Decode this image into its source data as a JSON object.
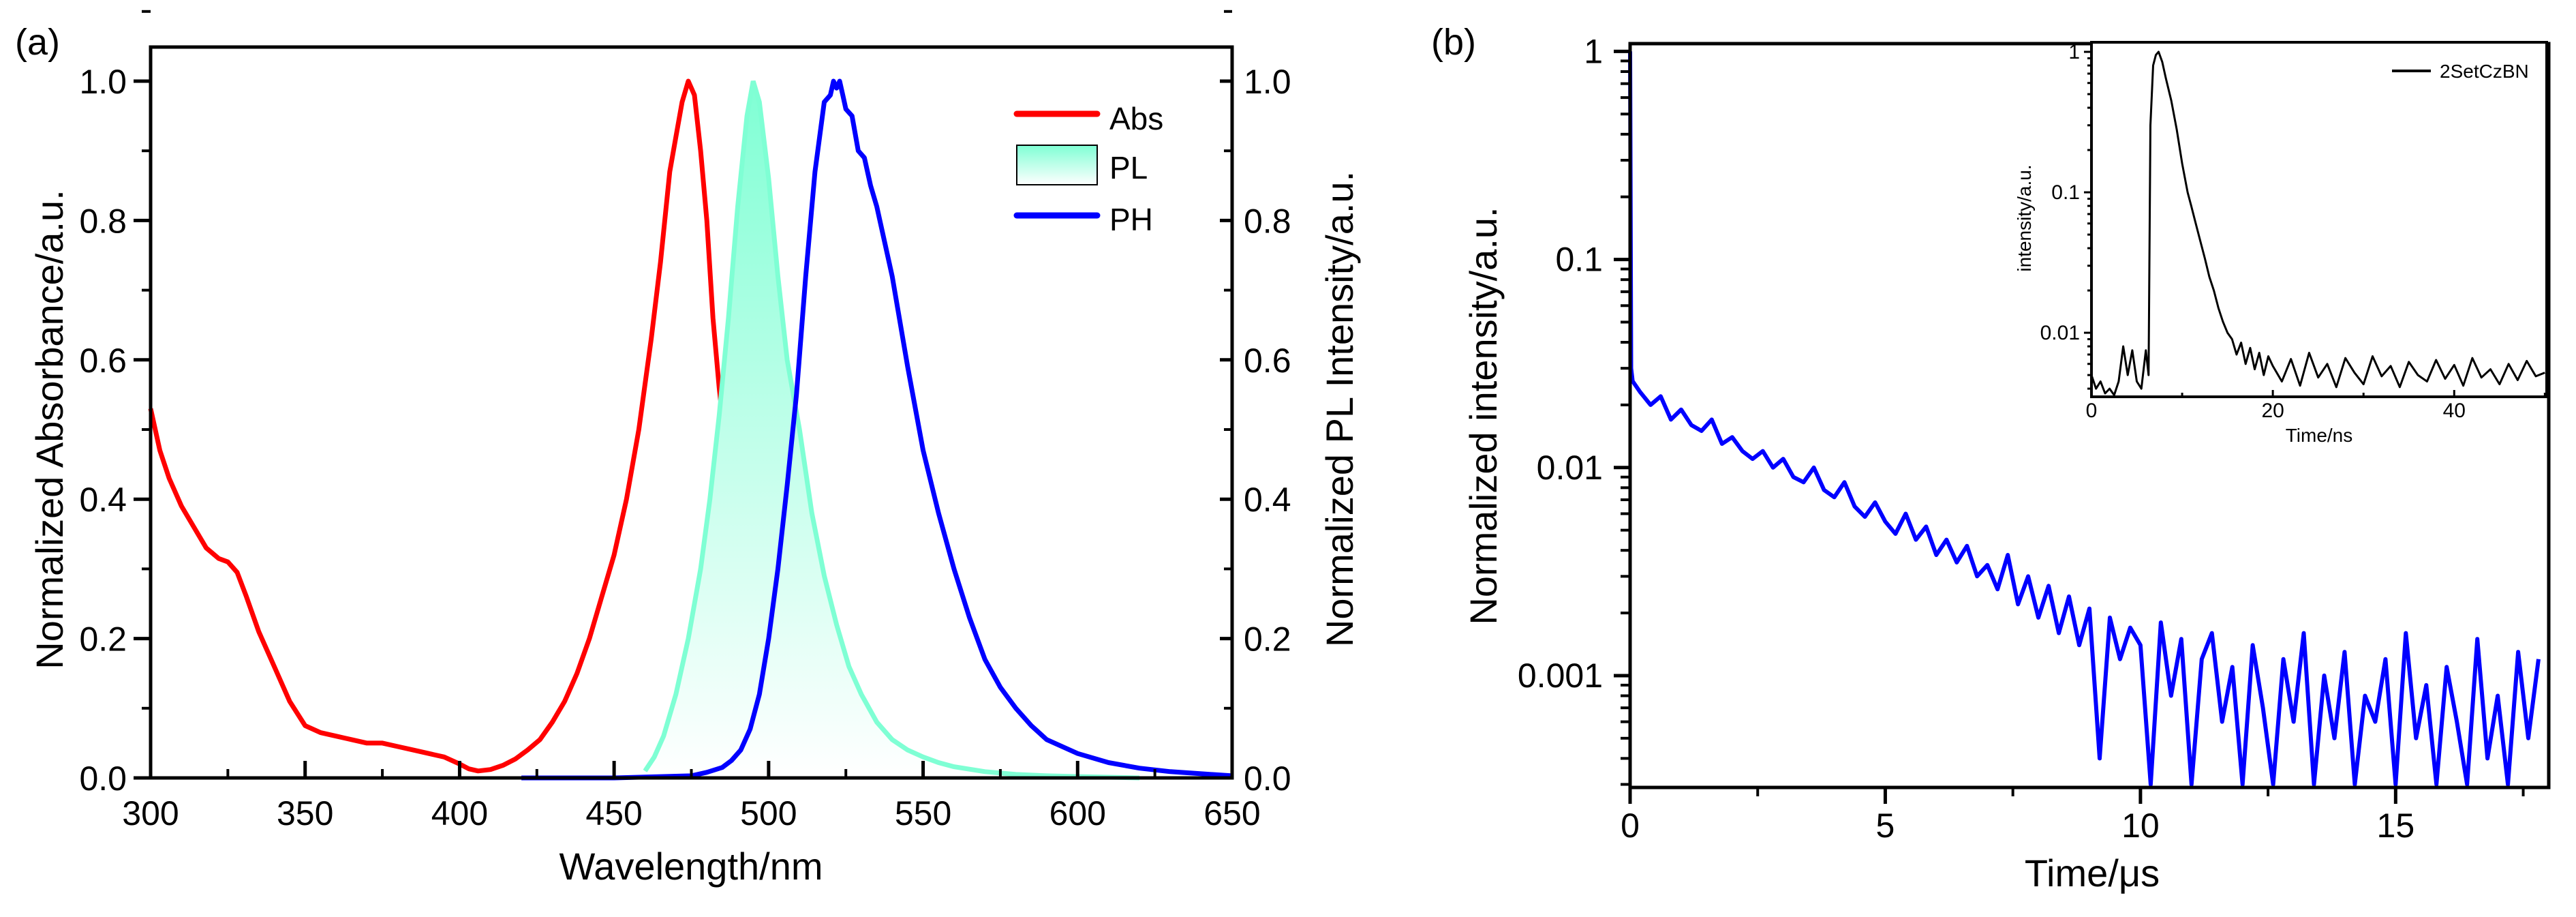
{
  "chart_data": [
    {
      "panel_label": "(a)",
      "type": "line",
      "xlabel": "Wavelength/nm",
      "ylabel": "Normalized Absorbance/a.u.",
      "ylabel_right": "Normalized PL Intensity/a.u.",
      "xlim": [
        300,
        650
      ],
      "ylim": [
        0,
        1.05
      ],
      "xticks": [
        300,
        350,
        400,
        450,
        500,
        550,
        600,
        650
      ],
      "yticks": [
        "0.0",
        "0.2",
        "0.4",
        "0.6",
        "0.8",
        "1.0"
      ],
      "grid": false,
      "legend_position": "top-right",
      "series": [
        {
          "name": "Abs",
          "style": "line",
          "color": "#ff0000",
          "x": [
            300,
            303,
            306,
            310,
            314,
            318,
            322,
            325,
            328,
            331,
            335,
            340,
            345,
            350,
            355,
            360,
            365,
            370,
            375,
            380,
            385,
            390,
            395,
            400,
            403,
            406,
            410,
            414,
            418,
            422,
            426,
            430,
            434,
            438,
            442,
            446,
            450,
            454,
            458,
            462,
            465,
            468,
            470,
            472,
            474,
            476,
            478,
            480,
            482,
            484,
            486,
            490,
            495,
            500,
            505,
            510
          ],
          "y": [
            0.53,
            0.47,
            0.43,
            0.39,
            0.36,
            0.33,
            0.315,
            0.31,
            0.295,
            0.26,
            0.21,
            0.16,
            0.11,
            0.075,
            0.065,
            0.06,
            0.055,
            0.05,
            0.05,
            0.045,
            0.04,
            0.035,
            0.03,
            0.02,
            0.013,
            0.01,
            0.012,
            0.018,
            0.027,
            0.04,
            0.055,
            0.08,
            0.11,
            0.15,
            0.2,
            0.26,
            0.32,
            0.4,
            0.5,
            0.63,
            0.74,
            0.87,
            0.92,
            0.97,
            1.0,
            0.98,
            0.9,
            0.8,
            0.66,
            0.56,
            0.48,
            0.32,
            0.17,
            0.08,
            0.03,
            0.01
          ]
        },
        {
          "name": "PL",
          "style": "filled",
          "color": "#7fffd4",
          "x": [
            460,
            463,
            466,
            470,
            474,
            478,
            481,
            484,
            487,
            490,
            493,
            495,
            497,
            500,
            503,
            506,
            510,
            514,
            518,
            522,
            526,
            530,
            535,
            540,
            545,
            550,
            555,
            560,
            570,
            580,
            590,
            600,
            620
          ],
          "y": [
            0.01,
            0.03,
            0.06,
            0.12,
            0.2,
            0.3,
            0.4,
            0.52,
            0.66,
            0.82,
            0.95,
            1.0,
            0.97,
            0.86,
            0.72,
            0.6,
            0.5,
            0.38,
            0.29,
            0.22,
            0.16,
            0.12,
            0.08,
            0.055,
            0.04,
            0.03,
            0.022,
            0.016,
            0.009,
            0.005,
            0.003,
            0.002,
            0.0
          ]
        },
        {
          "name": "PH",
          "style": "line",
          "color": "#0000ff",
          "x": [
            420,
            450,
            475,
            480,
            485,
            488,
            491,
            494,
            497,
            500,
            503,
            506,
            509,
            512,
            515,
            518,
            520,
            521,
            522,
            523,
            524,
            525,
            527,
            529,
            531,
            533,
            535,
            540,
            545,
            550,
            555,
            560,
            565,
            570,
            575,
            580,
            585,
            590,
            600,
            610,
            620,
            630,
            640,
            650
          ],
          "y": [
            0.0,
            0.0,
            0.003,
            0.008,
            0.015,
            0.025,
            0.04,
            0.07,
            0.12,
            0.2,
            0.3,
            0.42,
            0.55,
            0.72,
            0.87,
            0.97,
            0.98,
            1.0,
            0.99,
            1.0,
            0.98,
            0.96,
            0.95,
            0.9,
            0.89,
            0.85,
            0.82,
            0.72,
            0.59,
            0.47,
            0.38,
            0.3,
            0.23,
            0.17,
            0.13,
            0.1,
            0.075,
            0.055,
            0.035,
            0.022,
            0.014,
            0.009,
            0.006,
            0.003
          ]
        }
      ]
    },
    {
      "panel_label": "(b)",
      "type": "line",
      "xlabel": "Time/μs",
      "ylabel": "Normalized intensity/a.u.",
      "xlim": [
        0,
        18
      ],
      "ylim": [
        0.00029,
        1.09
      ],
      "yscale": "log",
      "xticks": [
        0,
        5,
        10,
        15
      ],
      "yticks": [
        "0.001",
        "0.01",
        "0.1",
        "1"
      ],
      "grid": false,
      "series": [
        {
          "color": "#0000ff",
          "x": [
            0,
            0.02,
            0.05,
            0.2,
            0.4,
            0.6,
            0.8,
            1.0,
            1.2,
            1.4,
            1.6,
            1.8,
            2.0,
            2.2,
            2.4,
            2.6,
            2.8,
            3.0,
            3.2,
            3.4,
            3.6,
            3.8,
            4.0,
            4.2,
            4.4,
            4.6,
            4.8,
            5.0,
            5.2,
            5.4,
            5.6,
            5.8,
            6.0,
            6.2,
            6.4,
            6.6,
            6.8,
            7.0,
            7.2,
            7.4,
            7.6,
            7.8,
            8.0,
            8.2,
            8.4,
            8.6,
            8.8,
            9.0,
            9.2,
            9.4,
            9.6,
            9.8,
            10.0,
            10.2,
            10.4,
            10.6,
            10.8,
            11.0,
            11.2,
            11.4,
            11.6,
            11.8,
            12.0,
            12.2,
            12.4,
            12.6,
            12.8,
            13.0,
            13.2,
            13.4,
            13.6,
            13.8,
            14.0,
            14.2,
            14.4,
            14.6,
            14.8,
            15.0,
            15.2,
            15.4,
            15.6,
            15.8,
            16.0,
            16.2,
            16.4,
            16.6,
            16.8,
            17.0,
            17.2,
            17.4,
            17.6,
            17.8
          ],
          "y": [
            1.0,
            0.03,
            0.026,
            0.023,
            0.02,
            0.022,
            0.017,
            0.019,
            0.016,
            0.015,
            0.017,
            0.013,
            0.014,
            0.012,
            0.011,
            0.012,
            0.01,
            0.011,
            0.009,
            0.0085,
            0.01,
            0.0078,
            0.0072,
            0.0085,
            0.0065,
            0.0058,
            0.0068,
            0.0055,
            0.0048,
            0.006,
            0.0045,
            0.0052,
            0.0038,
            0.0045,
            0.0035,
            0.0042,
            0.003,
            0.0034,
            0.0026,
            0.0038,
            0.0022,
            0.003,
            0.0019,
            0.0027,
            0.0016,
            0.0024,
            0.0014,
            0.0021,
            0.0004,
            0.0019,
            0.0012,
            0.0017,
            0.0014,
            0.0003,
            0.0018,
            0.0008,
            0.0015,
            0.0003,
            0.0012,
            0.0016,
            0.0006,
            0.0011,
            0.0003,
            0.0014,
            0.0007,
            0.0003,
            0.0012,
            0.0006,
            0.0016,
            0.0003,
            0.001,
            0.0005,
            0.0013,
            0.0003,
            0.0008,
            0.0006,
            0.0012,
            0.0003,
            0.0016,
            0.0005,
            0.0009,
            0.0003,
            0.0011,
            0.0006,
            0.0003,
            0.0015,
            0.0004,
            0.0008,
            0.0003,
            0.0013,
            0.0005,
            0.0012
          ]
        }
      ],
      "inset": {
        "xlabel": "Time/ns",
        "ylabel": "intensity/a.u.",
        "xlim": [
          0,
          50.2
        ],
        "ylim": [
          0.0035,
          1.17
        ],
        "yscale": "log",
        "xticks": [
          0,
          20,
          40
        ],
        "yticks": [
          "0.01",
          "0.1",
          "1"
        ],
        "legend_position": "top-right",
        "series": [
          {
            "name": "2SetCzBN",
            "color": "#000000",
            "x": [
              0,
              0.5,
              1,
              1.5,
              2,
              2.5,
              3,
              3.5,
              4,
              4.5,
              5,
              5.5,
              6,
              6.3,
              6.5,
              6.8,
              7.1,
              7.4,
              7.8,
              8.2,
              8.8,
              9.4,
              10,
              10.6,
              11,
              11.5,
              12,
              12.5,
              13,
              13.5,
              14,
              14.5,
              15,
              15.5,
              16,
              16.5,
              17,
              17.5,
              18,
              18.5,
              19,
              19.5,
              20,
              21,
              22,
              23,
              24,
              25,
              26,
              27,
              28,
              29,
              30,
              31,
              32,
              33,
              34,
              35,
              36,
              37,
              38,
              39,
              40,
              41,
              42,
              43,
              44,
              45,
              46,
              47,
              48,
              49,
              50
            ],
            "y": [
              0.005,
              0.004,
              0.0045,
              0.0037,
              0.004,
              0.0036,
              0.0045,
              0.008,
              0.005,
              0.0075,
              0.0045,
              0.004,
              0.0075,
              0.005,
              0.3,
              0.8,
              0.95,
              1.0,
              0.85,
              0.65,
              0.45,
              0.28,
              0.16,
              0.1,
              0.08,
              0.06,
              0.045,
              0.034,
              0.025,
              0.02,
              0.015,
              0.012,
              0.01,
              0.009,
              0.007,
              0.0085,
              0.006,
              0.0078,
              0.0055,
              0.0072,
              0.005,
              0.0068,
              0.0058,
              0.0045,
              0.0065,
              0.0042,
              0.0072,
              0.0048,
              0.006,
              0.0041,
              0.0066,
              0.0052,
              0.0043,
              0.0068,
              0.0049,
              0.0058,
              0.0041,
              0.0062,
              0.005,
              0.0045,
              0.0064,
              0.0047,
              0.0059,
              0.0042,
              0.0066,
              0.0048,
              0.0055,
              0.0043,
              0.006,
              0.0046,
              0.0063,
              0.0049,
              0.0052
            ]
          }
        ]
      }
    }
  ]
}
